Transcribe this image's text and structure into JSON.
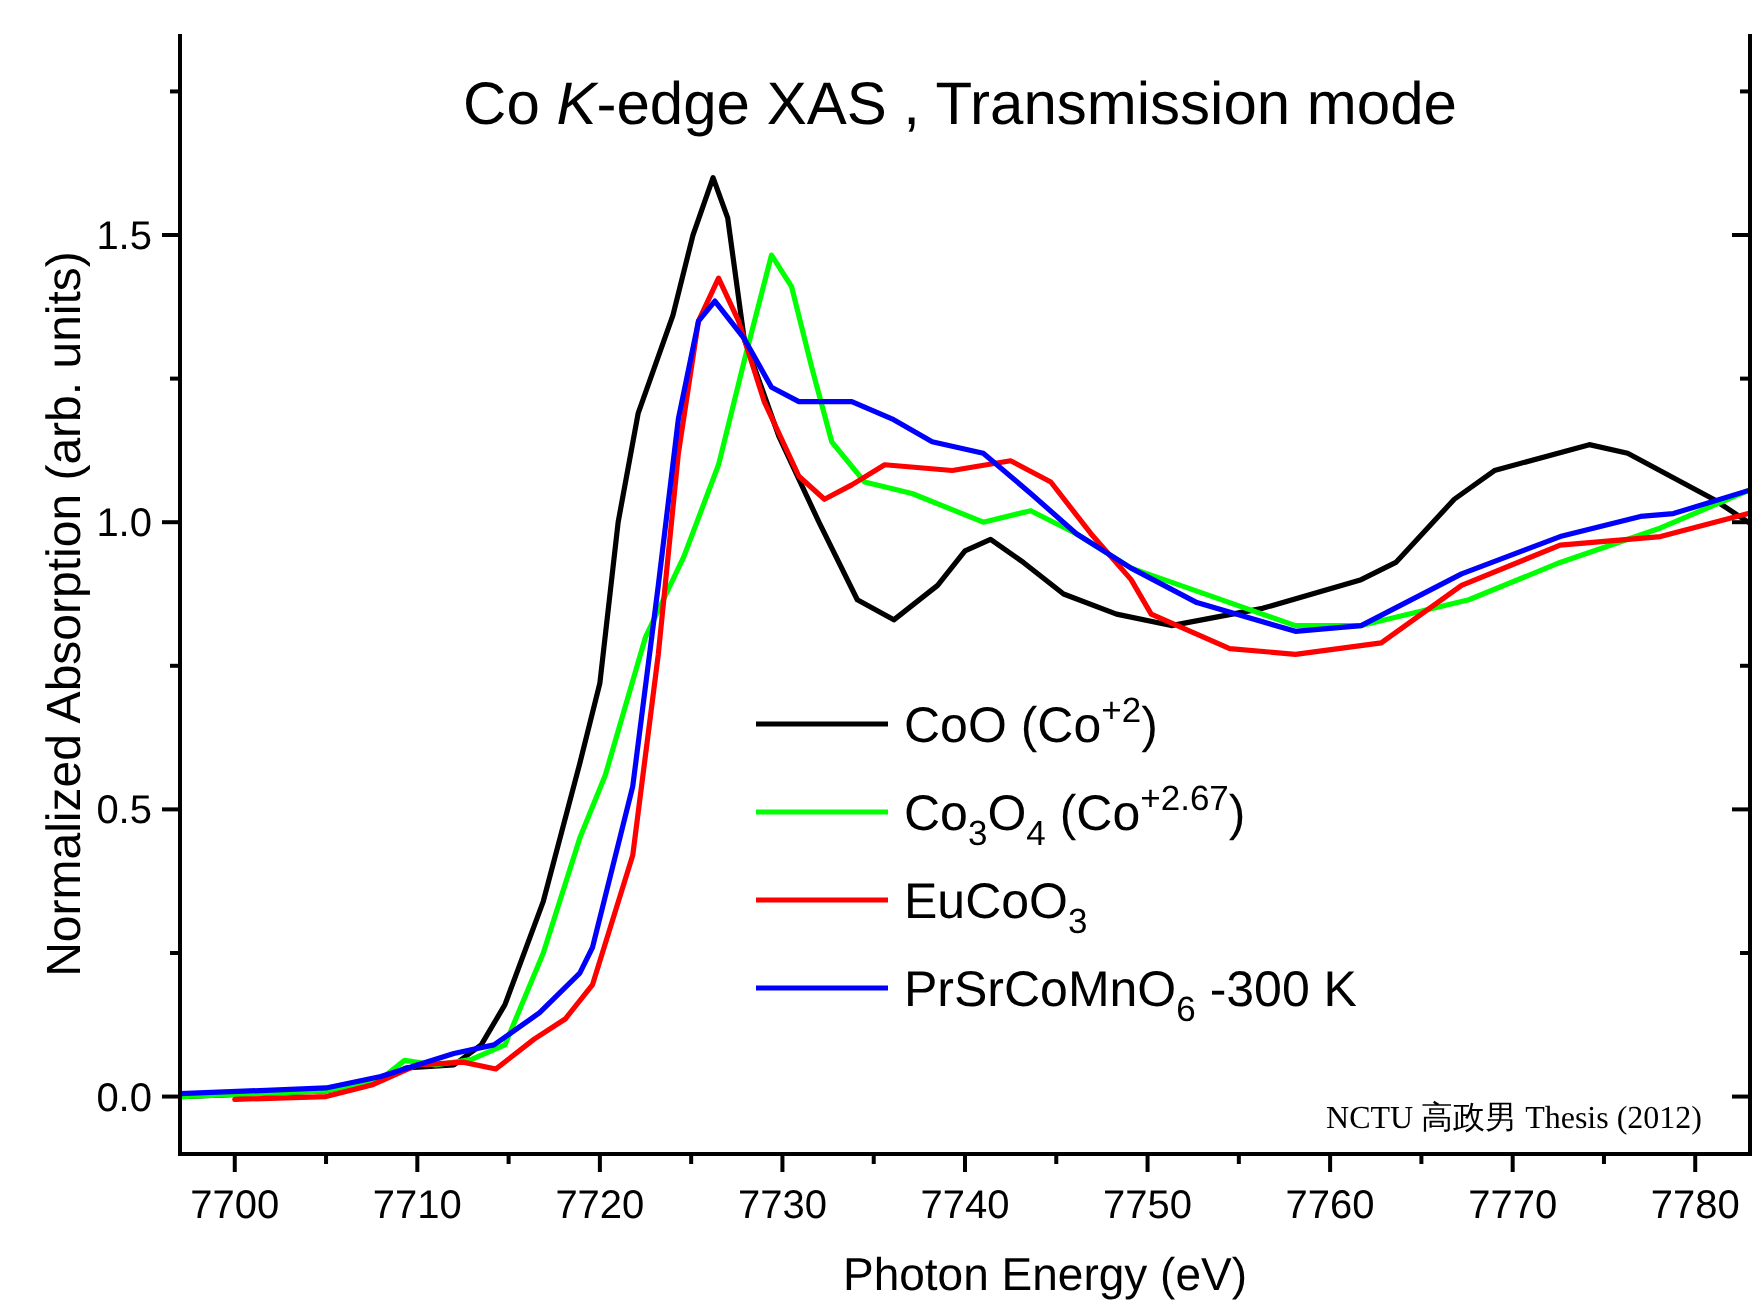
{
  "chart_data": {
    "type": "line",
    "title": "Co *K*-edge XAS , Transmission mode",
    "xlabel": "Photon Energy (eV)",
    "ylabel": "Normalized Absorption (arb. units)",
    "annotations": [
      "NCTU 高政男 Thesis (2012)"
    ],
    "xlim": [
      7697,
      7783
    ],
    "ylim": [
      -0.1,
      1.85
    ],
    "xticks": [
      7700,
      {
        "value": 7705,
        "label": null
      },
      7710,
      {
        "value": 7715,
        "label": null
      },
      7720,
      {
        "value": 7725,
        "label": null
      },
      7730,
      {
        "value": 7735,
        "label": null
      },
      7740,
      {
        "value": 7745,
        "label": null
      },
      7750,
      {
        "value": 7755,
        "label": null
      },
      7760,
      {
        "value": 7765,
        "label": null
      },
      7770,
      {
        "value": 7775,
        "label": null
      },
      7780
    ],
    "yticks": [
      {
        "value": 0,
        "label": "0.0"
      },
      {
        "value": 0.25,
        "label": null
      },
      {
        "value": 0.5,
        "label": "0.5"
      },
      {
        "value": 0.75,
        "label": null
      },
      {
        "value": 1,
        "label": "1.0"
      },
      {
        "value": 1.25,
        "label": null
      },
      {
        "value": 1.5,
        "label": "1.5"
      },
      {
        "value": 1.75,
        "label": null
      }
    ],
    "legend": "bottom",
    "line_style": "solid",
    "series": [
      {
        "name": "CoO (Co$^{+2}$)",
        "color": "#000000",
        "x": [
          7697,
          7705,
          7708,
          7709.4,
          7712,
          7713.5,
          7714.8,
          7716.9,
          7718.9,
          7720,
          7721,
          7722.1,
          7724,
          7725.1,
          7726.2,
          7727,
          7727.9,
          7729.8,
          7732,
          7734.1,
          7736.1,
          7738.5,
          7740,
          7741.4,
          7743.2,
          7745.4,
          7748.3,
          7751.3,
          7756.3,
          7761.7,
          7763.6,
          7766.8,
          7769,
          7774.2,
          7776.3,
          7781,
          7782.9
        ],
        "values": [
          0.0,
          0.01,
          0.03,
          0.05,
          0.055,
          0.09,
          0.16,
          0.34,
          0.58,
          0.72,
          1.0,
          1.19,
          1.36,
          1.5,
          1.6,
          1.53,
          1.32,
          1.15,
          1.0,
          0.865,
          0.83,
          0.89,
          0.95,
          0.97,
          0.93,
          0.875,
          0.84,
          0.82,
          0.85,
          0.9,
          0.93,
          1.04,
          1.09,
          1.135,
          1.12,
          1.04,
          1.0
        ]
      },
      {
        "name": "Co$_{3}$O$_{4}$ (Co$^{+2.67}$)",
        "color": "#00ff00",
        "x": [
          7697,
          7705,
          7708,
          7709.3,
          7711,
          7713,
          7714.8,
          7716.9,
          7718.9,
          7720.3,
          7722.5,
          7724.6,
          7726.5,
          7727.9,
          7729.4,
          7730.5,
          7731.6,
          7732.7,
          7734.5,
          7737.1,
          7741,
          7743.6,
          7746.1,
          7749.1,
          7752.7,
          7758.1,
          7761.7,
          7767.6,
          7772.6,
          7778.1,
          7782.9
        ],
        "values": [
          0.0,
          0.01,
          0.03,
          0.063,
          0.055,
          0.065,
          0.09,
          0.25,
          0.45,
          0.56,
          0.8,
          0.94,
          1.1,
          1.28,
          1.465,
          1.41,
          1.27,
          1.14,
          1.07,
          1.05,
          1.0,
          1.02,
          0.98,
          0.92,
          0.88,
          0.82,
          0.82,
          0.865,
          0.93,
          0.99,
          1.055
        ]
      },
      {
        "name": "EuCoO$_{3}$",
        "color": "#ff0000",
        "x": [
          7700,
          7705,
          7707.5,
          7710,
          7712.5,
          7714.3,
          7716.4,
          7718.1,
          7719.6,
          7721.8,
          7723.2,
          7724.3,
          7725.4,
          7726.5,
          7727.6,
          7729,
          7730.9,
          7732.3,
          7733.8,
          7735.6,
          7739.3,
          7742.5,
          7744.7,
          7746.9,
          7749.1,
          7750.2,
          7754.5,
          7758.1,
          7762.8,
          7767.2,
          7772.6,
          7778.1,
          7782.9
        ],
        "values": [
          -0.005,
          0.0,
          0.02,
          0.055,
          0.06,
          0.048,
          0.1,
          0.135,
          0.195,
          0.42,
          0.77,
          1.12,
          1.35,
          1.425,
          1.35,
          1.21,
          1.08,
          1.04,
          1.065,
          1.1,
          1.09,
          1.107,
          1.07,
          0.98,
          0.9,
          0.84,
          0.78,
          0.77,
          0.79,
          0.89,
          0.96,
          0.975,
          1.015
        ]
      },
      {
        "name": "PrSrCoMnO$_{6}$ -300 K",
        "color": "#0000ff",
        "x": [
          7697,
          7705,
          7708,
          7710,
          7712,
          7714.2,
          7716.7,
          7718.9,
          7719.6,
          7721.8,
          7723.2,
          7724.3,
          7725.4,
          7726.3,
          7727.9,
          7729.4,
          7730.9,
          7733.8,
          7736,
          7738.2,
          7741,
          7743.6,
          7746.1,
          7749.1,
          7752.7,
          7758.1,
          7761.7,
          7767.2,
          7772.6,
          7777,
          7778.8,
          7782.9
        ],
        "values": [
          0.005,
          0.015,
          0.035,
          0.055,
          0.075,
          0.09,
          0.146,
          0.215,
          0.26,
          0.54,
          0.89,
          1.18,
          1.35,
          1.385,
          1.32,
          1.235,
          1.21,
          1.21,
          1.18,
          1.14,
          1.12,
          1.05,
          0.98,
          0.92,
          0.86,
          0.81,
          0.82,
          0.91,
          0.975,
          1.01,
          1.015,
          1.055
        ]
      }
    ]
  }
}
